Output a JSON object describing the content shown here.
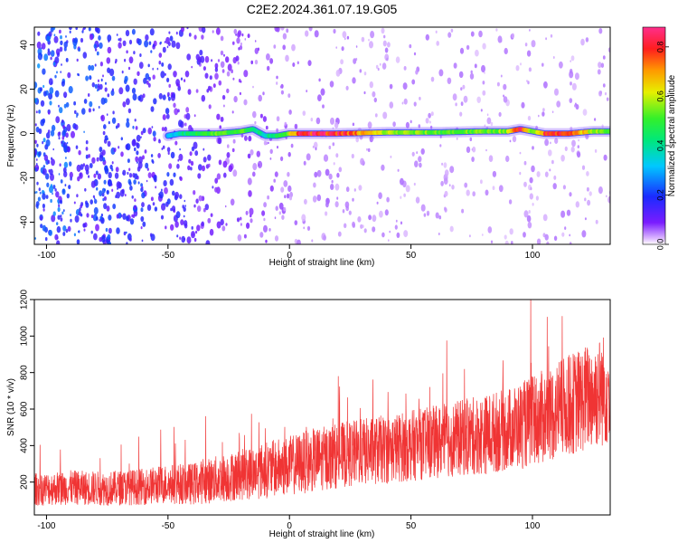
{
  "title": "C2E2.2024.361.07.19.G05",
  "chart_data": [
    {
      "type": "heatmap",
      "xlabel": "Height of straight line (km)",
      "ylabel": "Frequency (Hz)",
      "xlim": [
        -105,
        132
      ],
      "ylim": [
        -50,
        48
      ],
      "x_ticks": [
        -100,
        -50,
        0,
        50,
        100
      ],
      "y_ticks": [
        -40,
        -20,
        0,
        20,
        40
      ],
      "colorbar": {
        "label": "Normalized spectral amplitude",
        "range": [
          0,
          0.88
        ],
        "ticks": [
          0.0,
          0.2,
          0.4,
          0.6,
          0.8
        ],
        "colormap": "rainbow (white-violet-blue-cyan-green-yellow-red-magenta)"
      },
      "ridge": {
        "x": [
          -50,
          -45,
          -40,
          -30,
          -20,
          -15,
          -10,
          -5,
          0,
          5,
          20,
          40,
          60,
          80,
          90,
          95,
          100,
          105,
          115,
          125,
          132
        ],
        "frequency": [
          -1,
          0,
          0,
          0,
          1,
          2,
          -1,
          -1,
          0,
          0,
          0,
          0.5,
          0.5,
          1,
          1,
          2,
          1,
          0,
          0,
          1,
          1
        ],
        "amplitude": [
          0.3,
          0.4,
          0.5,
          0.55,
          0.55,
          0.45,
          0.4,
          0.5,
          0.6,
          0.85,
          0.85,
          0.6,
          0.55,
          0.55,
          0.6,
          0.88,
          0.5,
          0.8,
          0.85,
          0.6,
          0.5
        ]
      },
      "noise_amplitude_trend": {
        "x": [
          -105,
          -50,
          -25,
          0,
          50,
          100,
          132
        ],
        "amplitude": [
          0.2,
          0.15,
          0.08,
          0.05,
          0.04,
          0.04,
          0.04
        ]
      }
    },
    {
      "type": "line",
      "xlabel": "Height of straight line (km)",
      "ylabel": "SNR (10 * v/v)",
      "xlim": [
        -105,
        132
      ],
      "ylim": [
        20,
        1200
      ],
      "x_ticks": [
        -100,
        -50,
        0,
        50,
        100
      ],
      "y_ticks": [
        200,
        400,
        600,
        800,
        1000,
        1200
      ],
      "grid": false,
      "series": [
        {
          "color": "#f03434",
          "x": [
            -105,
            -90,
            -75,
            -60,
            -50,
            -40,
            -30,
            -20,
            -10,
            0,
            10,
            20,
            30,
            40,
            50,
            60,
            70,
            80,
            90,
            100,
            110,
            120,
            132
          ],
          "mean": [
            160,
            170,
            165,
            175,
            190,
            190,
            215,
            240,
            265,
            290,
            320,
            345,
            365,
            380,
            400,
            420,
            440,
            460,
            490,
            530,
            590,
            650,
            720
          ],
          "spread": [
            90,
            95,
            95,
            100,
            110,
            115,
            130,
            140,
            155,
            165,
            175,
            180,
            185,
            190,
            195,
            200,
            210,
            220,
            230,
            250,
            270,
            290,
            320
          ]
        }
      ]
    }
  ]
}
